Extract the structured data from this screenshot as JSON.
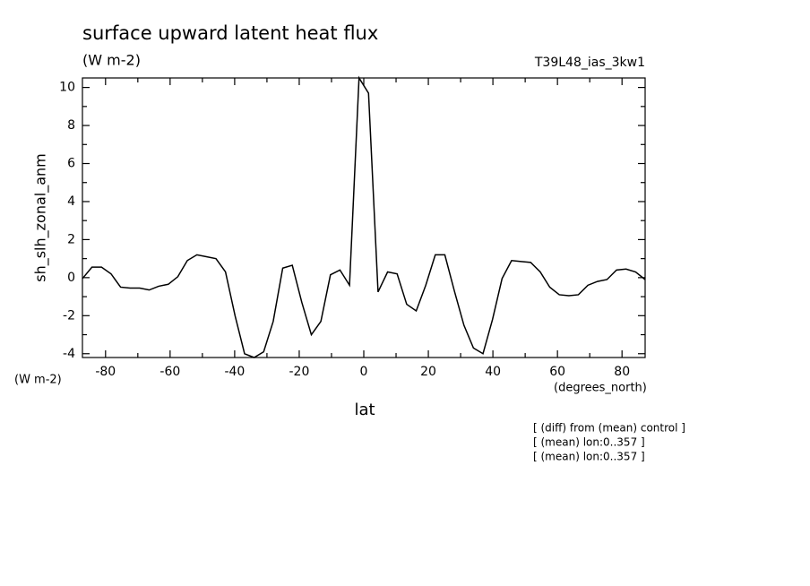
{
  "chart_data": {
    "type": "line",
    "title": "surface upward latent heat flux",
    "subtitle": "(W m-2)",
    "run_label": "T39L48_ias_3kw1",
    "y_label": "sh_slh_zonal_anm",
    "y_units": "(W m-2)",
    "x_label": "lat",
    "x_units": "(degrees_north)",
    "notes": [
      "[ (diff) from (mean) control ]",
      "[ (mean) lon:0..357 ]",
      "[ (mean) lon:0..357 ]"
    ],
    "x": [
      -87.16,
      -84.21,
      -81.25,
      -78.3,
      -75.34,
      -72.39,
      -69.43,
      -66.48,
      -63.52,
      -60.57,
      -57.61,
      -54.66,
      -51.7,
      -48.75,
      -45.79,
      -42.84,
      -39.88,
      -36.93,
      -33.97,
      -31.02,
      -28.06,
      -25.11,
      -22.15,
      -19.2,
      -16.24,
      -13.29,
      -10.33,
      -7.38,
      -4.42,
      -1.47,
      1.47,
      4.42,
      7.38,
      10.33,
      13.29,
      16.24,
      19.2,
      22.15,
      25.11,
      28.06,
      31.02,
      33.97,
      36.93,
      39.88,
      42.84,
      45.79,
      48.75,
      51.7,
      54.66,
      57.61,
      60.57,
      63.52,
      66.48,
      69.43,
      72.39,
      75.34,
      78.3,
      81.25,
      84.21,
      87.16
    ],
    "series": [
      {
        "color": "#000000",
        "values": [
          -0.05,
          0.55,
          0.55,
          0.2,
          -0.5,
          -0.55,
          -0.55,
          -0.65,
          -0.45,
          -0.35,
          0.05,
          0.9,
          1.2,
          1.1,
          1.0,
          0.3,
          -2.0,
          -4.0,
          -4.2,
          -3.9,
          -2.3,
          0.5,
          0.65,
          -1.3,
          -3.0,
          -2.3,
          0.15,
          0.4,
          -0.4,
          10.5,
          9.7,
          -0.75,
          0.3,
          0.2,
          -1.4,
          -1.75,
          -0.4,
          1.2,
          1.2,
          -0.7,
          -2.5,
          -3.7,
          -4.0,
          -2.2,
          -0.05,
          0.9,
          0.85,
          0.8,
          0.3,
          -0.5,
          -0.9,
          -0.95,
          -0.9,
          -0.4,
          -0.2,
          -0.1,
          0.4,
          0.45,
          0.3,
          -0.1
        ]
      }
    ],
    "xlim": [
      -87.16,
      87.16
    ],
    "ylim": [
      -4.2,
      10.5
    ],
    "xticks": [
      -80,
      -60,
      -40,
      -20,
      0,
      20,
      40,
      60,
      80
    ],
    "yticks": [
      -4,
      -2,
      0,
      2,
      4,
      6,
      8,
      10
    ],
    "xminorticks": [
      -70,
      -50,
      -30,
      -10,
      10,
      30,
      50,
      70
    ],
    "yminorticks": [
      -3,
      -1,
      1,
      3,
      5,
      7,
      9
    ]
  }
}
